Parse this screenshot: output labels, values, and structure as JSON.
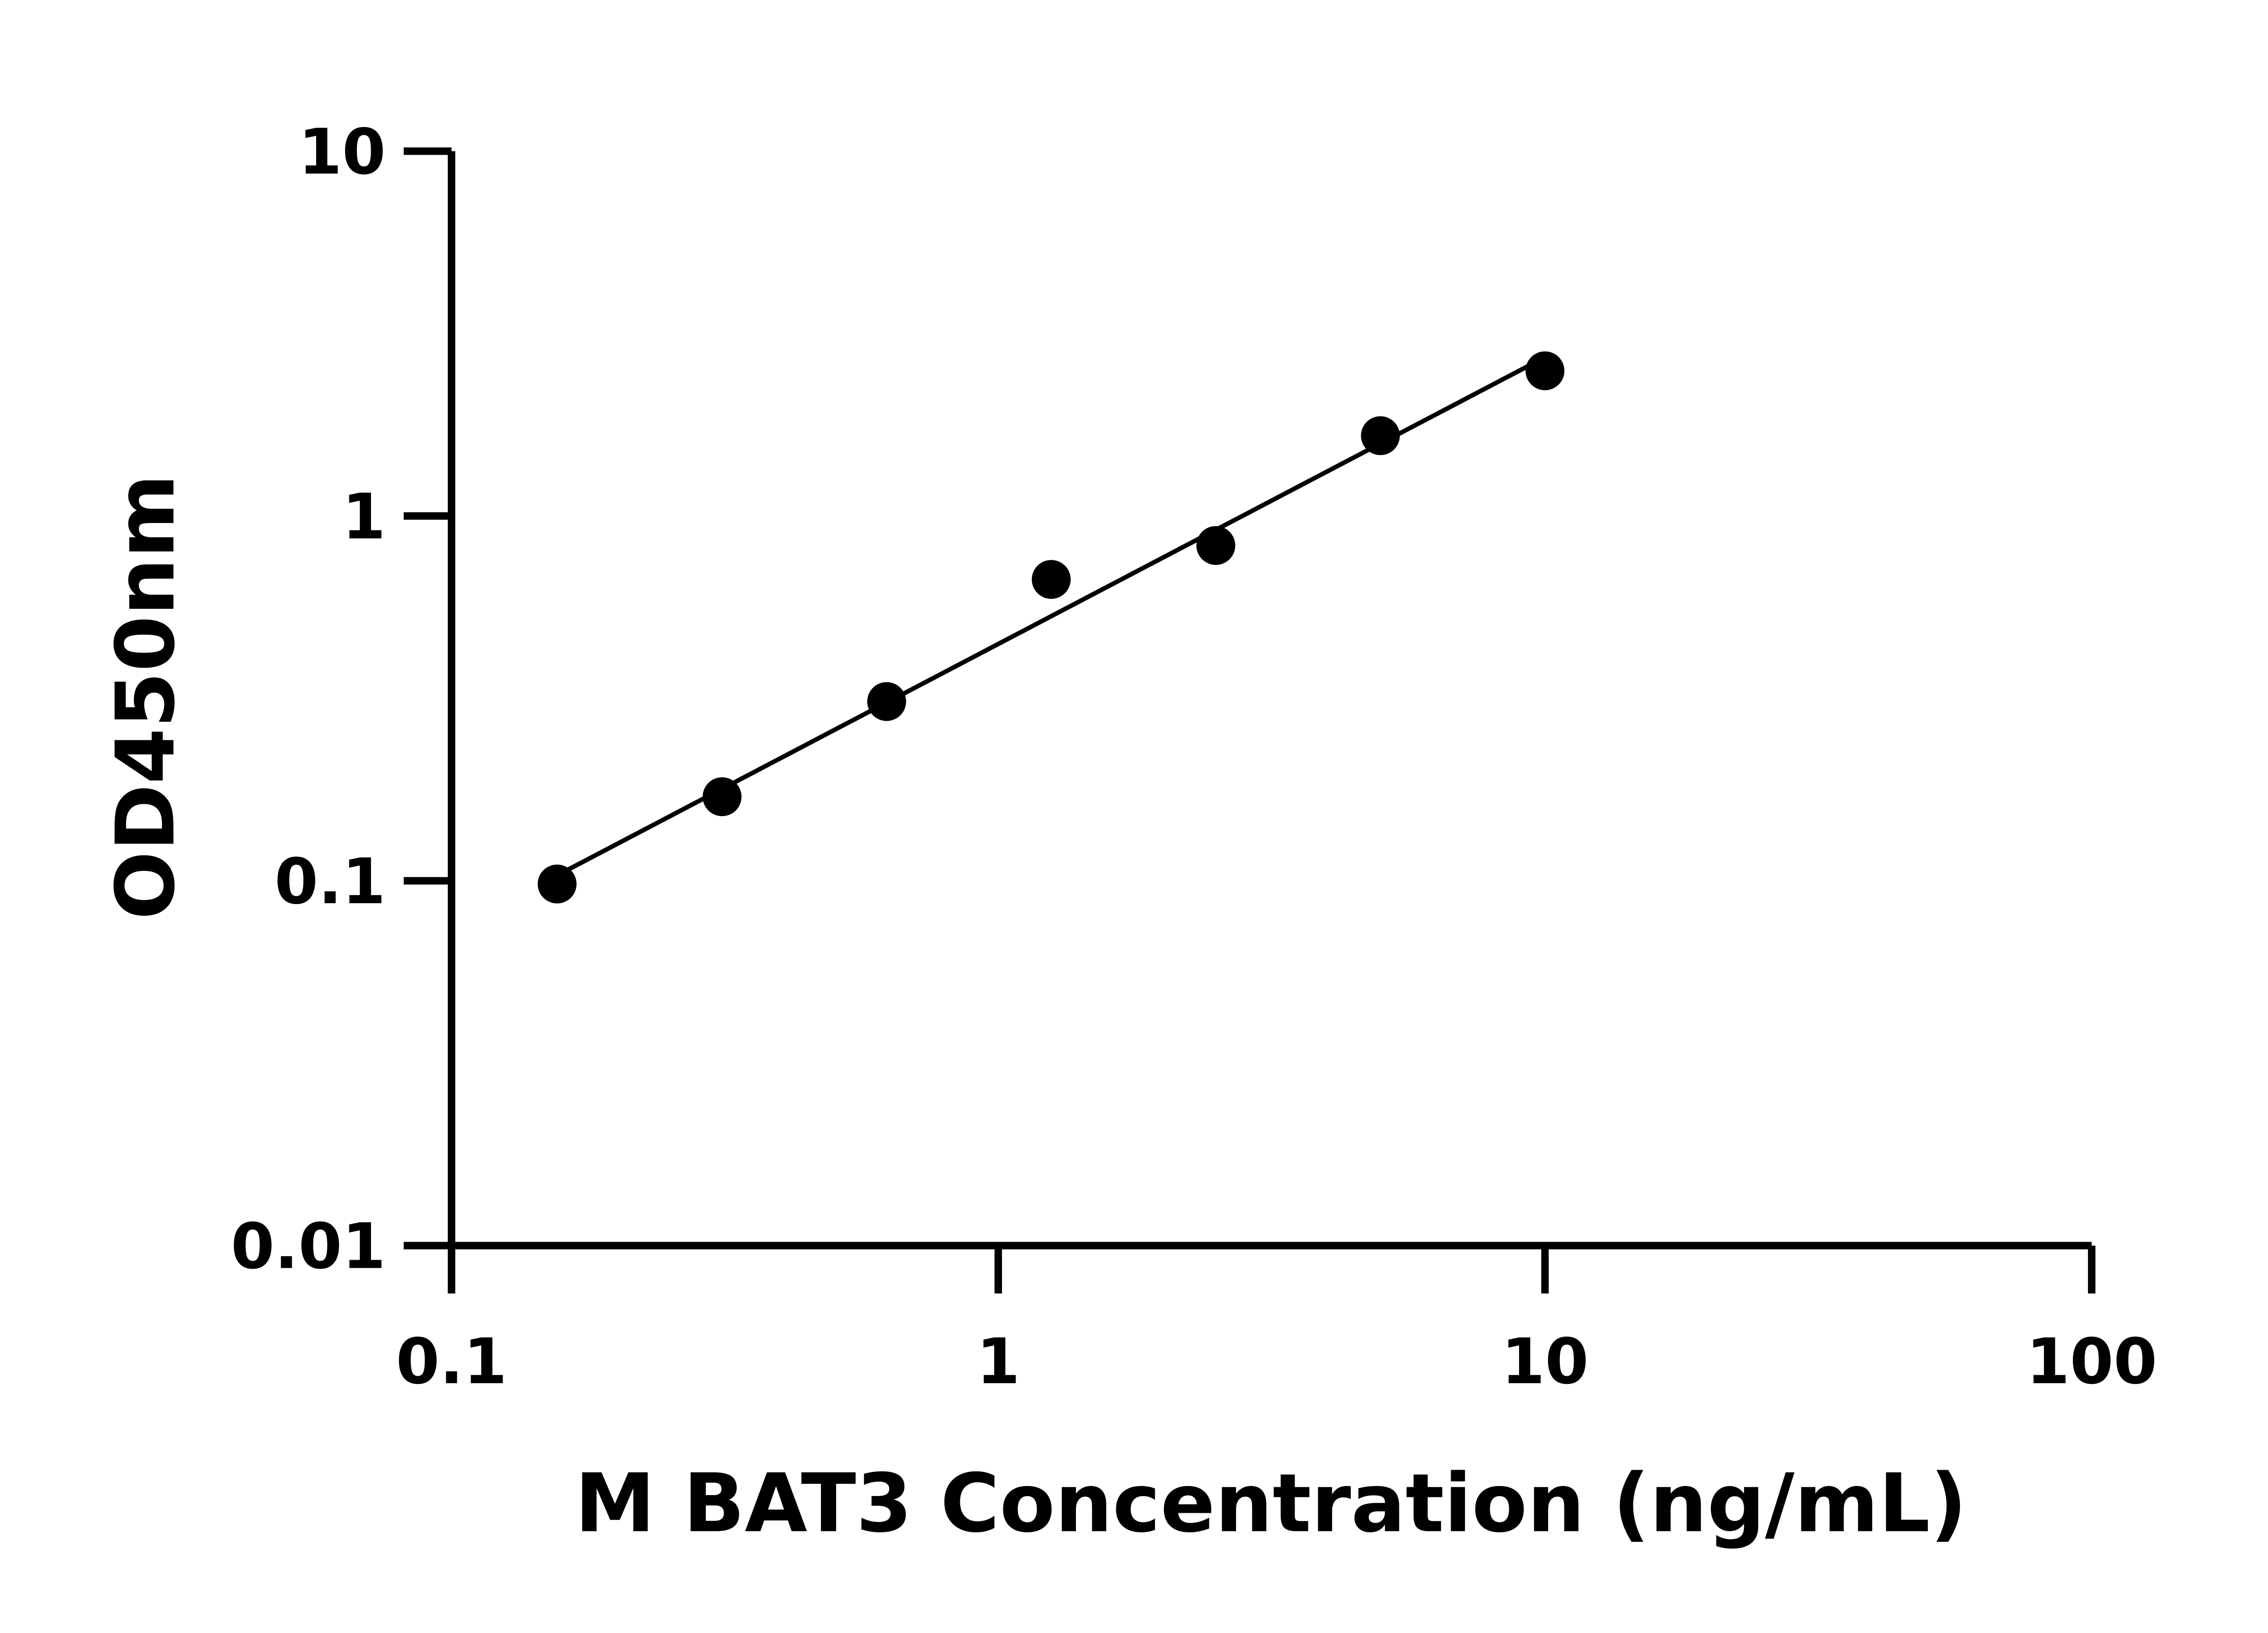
{
  "chart_data": {
    "type": "scatter",
    "xlabel": "M BAT3 Concentration (ng/mL)",
    "ylabel": "OD450nm",
    "x_scale": "log",
    "y_scale": "log",
    "xlim": [
      0.1,
      100
    ],
    "ylim": [
      0.01,
      10
    ],
    "x_ticks": [
      "0.1",
      "1",
      "10",
      "100"
    ],
    "y_ticks": [
      "0.01",
      "0.1",
      "1",
      "10"
    ],
    "grid": false,
    "fit_line": true,
    "marker_color": "#000000",
    "points": [
      {
        "x": 0.156,
        "y": 0.098
      },
      {
        "x": 0.3125,
        "y": 0.17
      },
      {
        "x": 0.625,
        "y": 0.31
      },
      {
        "x": 1.25,
        "y": 0.67
      },
      {
        "x": 2.5,
        "y": 0.83
      },
      {
        "x": 5,
        "y": 1.66
      },
      {
        "x": 10,
        "y": 2.5
      }
    ]
  }
}
